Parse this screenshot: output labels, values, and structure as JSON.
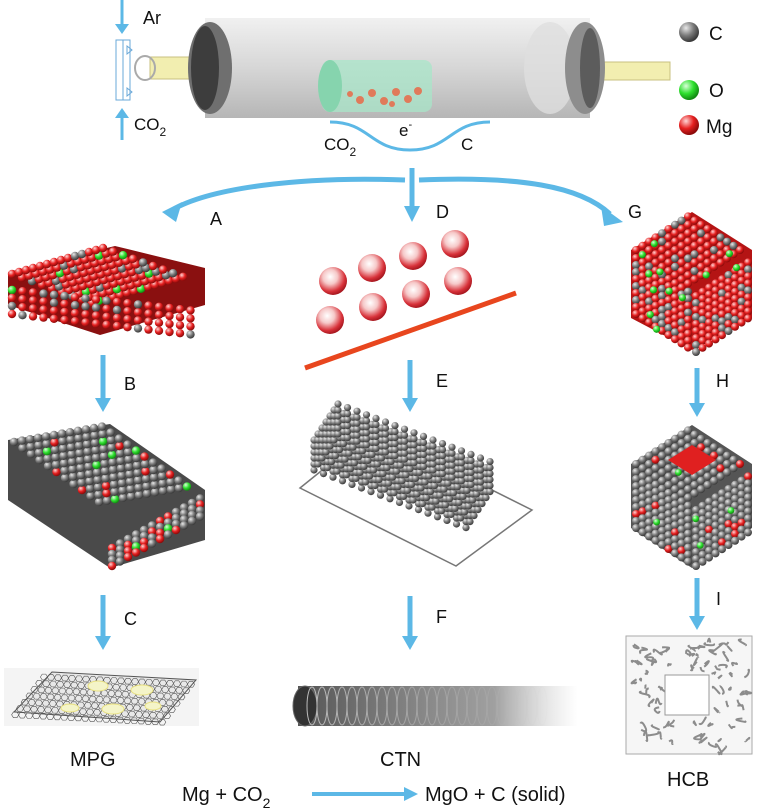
{
  "gas_inlet": {
    "ar_label": "Ar",
    "co2_label_main": "CO",
    "co2_label_sub": "2"
  },
  "reactor": {
    "left_label_main": "CO",
    "left_label_sub": "2",
    "center_label_main": "e",
    "center_label_sup": "-",
    "right_label": "C"
  },
  "legend": [
    {
      "label": "C",
      "color": "#6b6b6b"
    },
    {
      "label": "O",
      "color": "#22dd22"
    },
    {
      "label": "Mg",
      "color": "#e01818"
    }
  ],
  "paths": {
    "left": {
      "arrow": "A",
      "steps": [
        "B",
        "C"
      ],
      "product": "MPG"
    },
    "center": {
      "arrow": "D",
      "steps": [
        "E",
        "F"
      ],
      "product": "CTN"
    },
    "right": {
      "arrow": "G",
      "steps": [
        "H",
        "I"
      ],
      "product": "HCB"
    }
  },
  "equation": {
    "lhs_a": "Mg + CO",
    "lhs_sub": "2",
    "rhs": "MgO + C (solid)"
  },
  "colors": {
    "arrow": "#5cb8e6",
    "carbon": "#6b6b6b",
    "oxygen": "#22dd22",
    "magnesium": "#e01818",
    "substrate_line": "#e8461e"
  }
}
